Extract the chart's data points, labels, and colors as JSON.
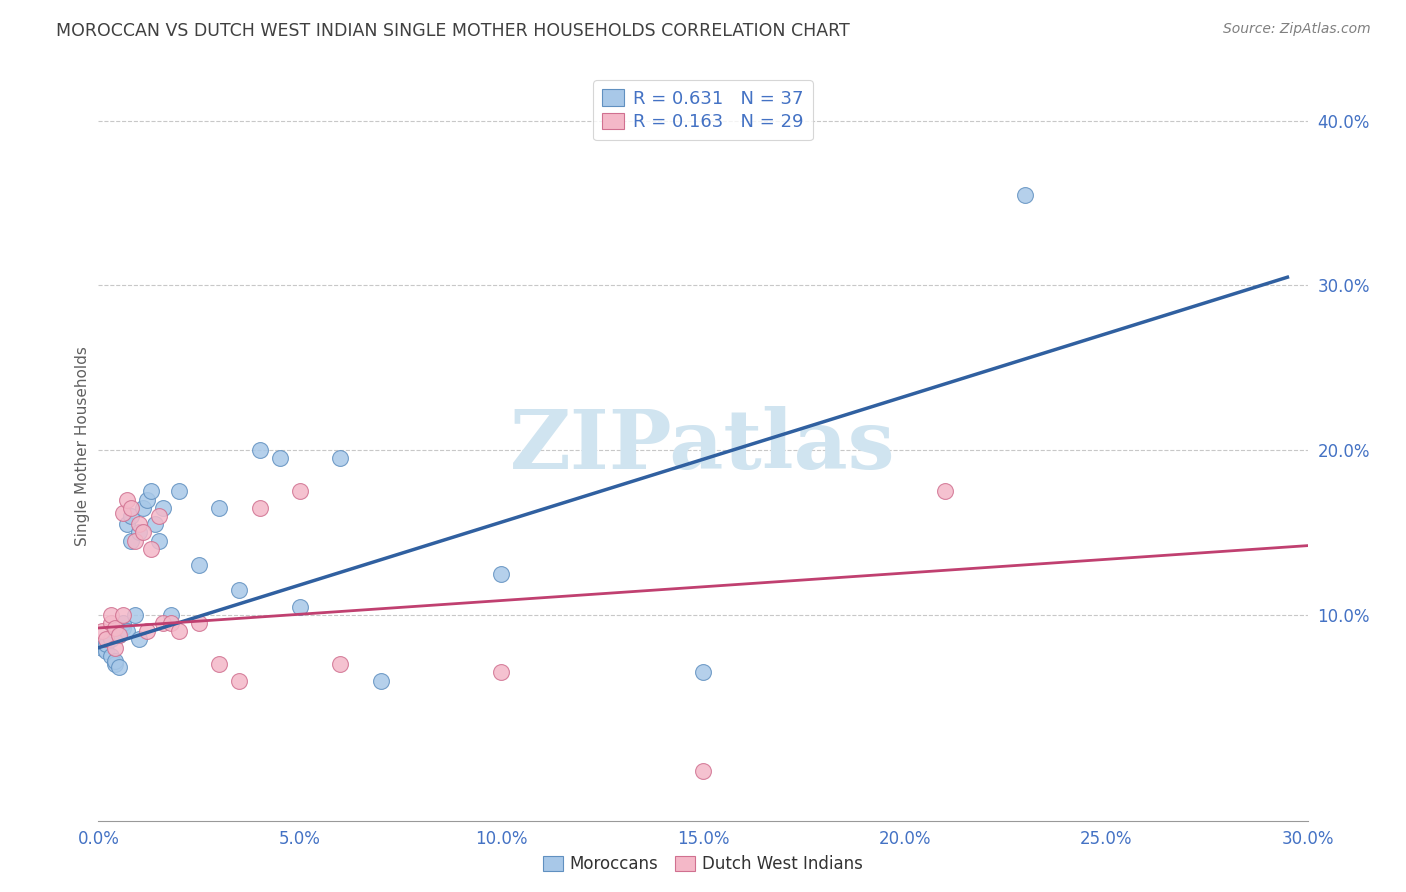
{
  "title": "MOROCCAN VS DUTCH WEST INDIAN SINGLE MOTHER HOUSEHOLDS CORRELATION CHART",
  "source": "Source: ZipAtlas.com",
  "ylabel": "Single Mother Households",
  "xlabel_blue": "Moroccans",
  "xlabel_pink": "Dutch West Indians",
  "xlim": [
    0.0,
    0.3
  ],
  "ylim": [
    -0.025,
    0.43
  ],
  "xticks": [
    0.0,
    0.05,
    0.1,
    0.15,
    0.2,
    0.25,
    0.3
  ],
  "yticks_right": [
    0.1,
    0.2,
    0.3,
    0.4
  ],
  "legend_blue_label": "R = 0.631   N = 37",
  "legend_pink_label": "R = 0.163   N = 29",
  "blue_scatter_color": "#a8c8e8",
  "pink_scatter_color": "#f4b8c8",
  "blue_edge_color": "#6090c0",
  "pink_edge_color": "#d07090",
  "blue_line_color": "#3060a0",
  "pink_line_color": "#c04070",
  "watermark_text": "ZIPatlas",
  "watermark_color": "#d0e4f0",
  "blue_points_x": [
    0.001,
    0.002,
    0.002,
    0.003,
    0.003,
    0.004,
    0.004,
    0.005,
    0.005,
    0.006,
    0.006,
    0.007,
    0.007,
    0.008,
    0.008,
    0.009,
    0.01,
    0.01,
    0.011,
    0.012,
    0.013,
    0.014,
    0.015,
    0.016,
    0.018,
    0.02,
    0.025,
    0.03,
    0.035,
    0.04,
    0.045,
    0.05,
    0.06,
    0.07,
    0.1,
    0.15,
    0.23
  ],
  "blue_points_y": [
    0.08,
    0.078,
    0.082,
    0.075,
    0.085,
    0.07,
    0.072,
    0.068,
    0.088,
    0.092,
    0.095,
    0.09,
    0.155,
    0.145,
    0.16,
    0.1,
    0.085,
    0.15,
    0.165,
    0.17,
    0.175,
    0.155,
    0.145,
    0.165,
    0.1,
    0.175,
    0.13,
    0.165,
    0.115,
    0.2,
    0.195,
    0.105,
    0.195,
    0.06,
    0.125,
    0.065,
    0.355
  ],
  "pink_points_x": [
    0.001,
    0.002,
    0.003,
    0.003,
    0.004,
    0.004,
    0.005,
    0.006,
    0.006,
    0.007,
    0.008,
    0.009,
    0.01,
    0.011,
    0.012,
    0.013,
    0.015,
    0.016,
    0.018,
    0.02,
    0.025,
    0.03,
    0.035,
    0.04,
    0.05,
    0.06,
    0.1,
    0.15,
    0.21
  ],
  "pink_points_y": [
    0.09,
    0.085,
    0.095,
    0.1,
    0.08,
    0.092,
    0.088,
    0.1,
    0.162,
    0.17,
    0.165,
    0.145,
    0.155,
    0.15,
    0.09,
    0.14,
    0.16,
    0.095,
    0.095,
    0.09,
    0.095,
    0.07,
    0.06,
    0.165,
    0.175,
    0.07,
    0.065,
    0.005,
    0.175
  ],
  "blue_line_x": [
    0.0,
    0.295
  ],
  "blue_line_y": [
    0.08,
    0.305
  ],
  "pink_line_x": [
    0.0,
    0.3
  ],
  "pink_line_y": [
    0.092,
    0.142
  ],
  "background_color": "#ffffff",
  "grid_color": "#c8c8c8",
  "axis_color": "#999999",
  "tick_label_color": "#4472c4",
  "title_color": "#404040",
  "source_color": "#808080",
  "ylabel_color": "#606060"
}
